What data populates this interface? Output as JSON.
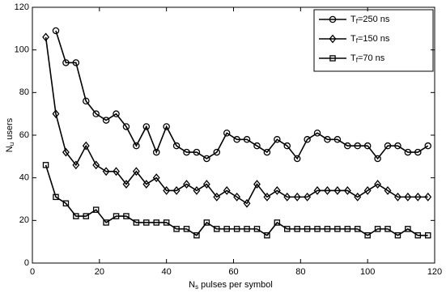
{
  "chart_data": {
    "type": "line",
    "xlabel": [
      "N",
      "s",
      " pulses per symbol"
    ],
    "ylabel": [
      "N",
      "u",
      " users"
    ],
    "x": [
      4,
      7,
      10,
      13,
      16,
      19,
      22,
      25,
      28,
      31,
      34,
      37,
      40,
      43,
      46,
      49,
      52,
      55,
      58,
      61,
      64,
      67,
      70,
      73,
      76,
      79,
      82,
      85,
      88,
      91,
      94,
      97,
      100,
      103,
      106,
      109,
      112,
      115,
      118
    ],
    "series": [
      {
        "name": [
          "T",
          "f",
          "=250 ns"
        ],
        "color": "#000000",
        "marker": "circle",
        "values": [
          null,
          109,
          94,
          94,
          76,
          70,
          67,
          70,
          64,
          55,
          64,
          52,
          64,
          55,
          52,
          52,
          49,
          52,
          61,
          58,
          58,
          55,
          52,
          58,
          55,
          49,
          58,
          61,
          58,
          58,
          55,
          55,
          55,
          49,
          55,
          55,
          52,
          52,
          55
        ]
      },
      {
        "name": [
          "T",
          "f",
          "=150 ns"
        ],
        "color": "#000000",
        "marker": "diamond",
        "values": [
          106,
          70,
          52,
          46,
          55,
          46,
          43,
          43,
          37,
          43,
          37,
          40,
          34,
          34,
          37,
          34,
          37,
          31,
          34,
          31,
          28,
          37,
          31,
          34,
          31,
          31,
          31,
          34,
          34,
          34,
          34,
          31,
          34,
          37,
          34,
          31,
          31,
          31,
          31
        ]
      },
      {
        "name": [
          "T",
          "f",
          "=70 ns"
        ],
        "color": "#000000",
        "marker": "square",
        "values": [
          46,
          31,
          28,
          22,
          22,
          25,
          19,
          22,
          22,
          19,
          19,
          19,
          19,
          16,
          16,
          13,
          19,
          16,
          16,
          16,
          16,
          16,
          13,
          19,
          16,
          16,
          16,
          16,
          16,
          16,
          16,
          16,
          13,
          16,
          16,
          13,
          16,
          13,
          13
        ]
      }
    ],
    "xlim": [
      0,
      120
    ],
    "xticks": [
      0,
      20,
      40,
      60,
      80,
      100,
      120
    ],
    "ylim": [
      0,
      120
    ],
    "yticks": [
      0,
      20,
      40,
      60,
      80,
      100,
      120
    ],
    "legend": "top-right"
  }
}
